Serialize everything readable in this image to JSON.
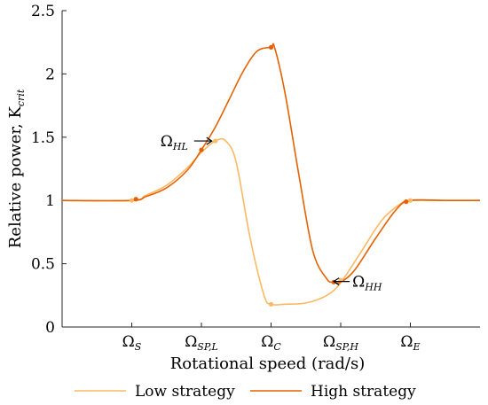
{
  "chart_data": {
    "type": "line",
    "xlabel": "Rotational speed (rad/s)",
    "ylabel": "Relative power, K",
    "ylabel_sub": "crit",
    "ylim": [
      0,
      2.5
    ],
    "yticks": [
      0,
      0.5,
      1,
      1.5,
      2,
      2.5
    ],
    "yticks_labels": [
      "0",
      "0.5",
      "1",
      "1.5",
      "2",
      "2.5"
    ],
    "xlim": [
      0,
      6
    ],
    "xticks": [
      {
        "x": 1,
        "main": "Ω",
        "sub": "S"
      },
      {
        "x": 2,
        "main": "Ω",
        "sub": "SP,L"
      },
      {
        "x": 3,
        "main": "Ω",
        "sub": "C"
      },
      {
        "x": 4,
        "main": "Ω",
        "sub": "SP,H"
      },
      {
        "x": 5,
        "main": "Ω",
        "sub": "E"
      }
    ],
    "grid": false,
    "legend_position": "bottom",
    "colors": {
      "low": "#FDB863",
      "high": "#E66101"
    },
    "series": [
      {
        "name": "Low strategy",
        "color": "#FDB863",
        "x": [
          0,
          1,
          1.2,
          1.5,
          1.8,
          2.0,
          2.2,
          2.35,
          2.5,
          2.7,
          2.9,
          3.0,
          3.2,
          3.5,
          3.8,
          4.0,
          4.3,
          4.6,
          4.9,
          5.0,
          5.5,
          6.0
        ],
        "y": [
          1,
          1,
          1.04,
          1.12,
          1.26,
          1.38,
          1.47,
          1.47,
          1.3,
          0.7,
          0.25,
          0.18,
          0.18,
          0.19,
          0.25,
          0.35,
          0.6,
          0.85,
          0.99,
          1,
          1,
          1
        ]
      },
      {
        "name": "High strategy",
        "color": "#E66101",
        "x": [
          0,
          1,
          1.2,
          1.5,
          1.8,
          2.0,
          2.2,
          2.4,
          2.6,
          2.8,
          3.0,
          3.05,
          3.2,
          3.4,
          3.6,
          3.8,
          3.9,
          4.0,
          4.2,
          4.5,
          4.8,
          5.0,
          5.5,
          6.0
        ],
        "y": [
          1,
          1,
          1.03,
          1.1,
          1.24,
          1.4,
          1.58,
          1.8,
          2.02,
          2.18,
          2.21,
          2.21,
          1.85,
          1.2,
          0.6,
          0.38,
          0.355,
          0.355,
          0.45,
          0.7,
          0.93,
          1,
          1,
          1
        ]
      }
    ],
    "markers": {
      "low": [
        [
          1,
          1
        ],
        [
          2.2,
          1.47
        ],
        [
          3.0,
          0.18
        ],
        [
          4.0,
          0.37
        ],
        [
          5.0,
          1.0
        ]
      ],
      "high": [
        [
          1.06,
          1.01
        ],
        [
          2.0,
          1.4
        ],
        [
          3.0,
          2.21
        ],
        [
          3.9,
          0.355
        ],
        [
          4.94,
          0.99
        ]
      ]
    },
    "annotations": [
      {
        "main": "Ω",
        "sub": "HL",
        "x": 2.15,
        "y": 1.47,
        "side": "left"
      },
      {
        "main": "Ω",
        "sub": "HH",
        "x": 3.9,
        "y": 0.36,
        "side": "right"
      }
    ]
  }
}
